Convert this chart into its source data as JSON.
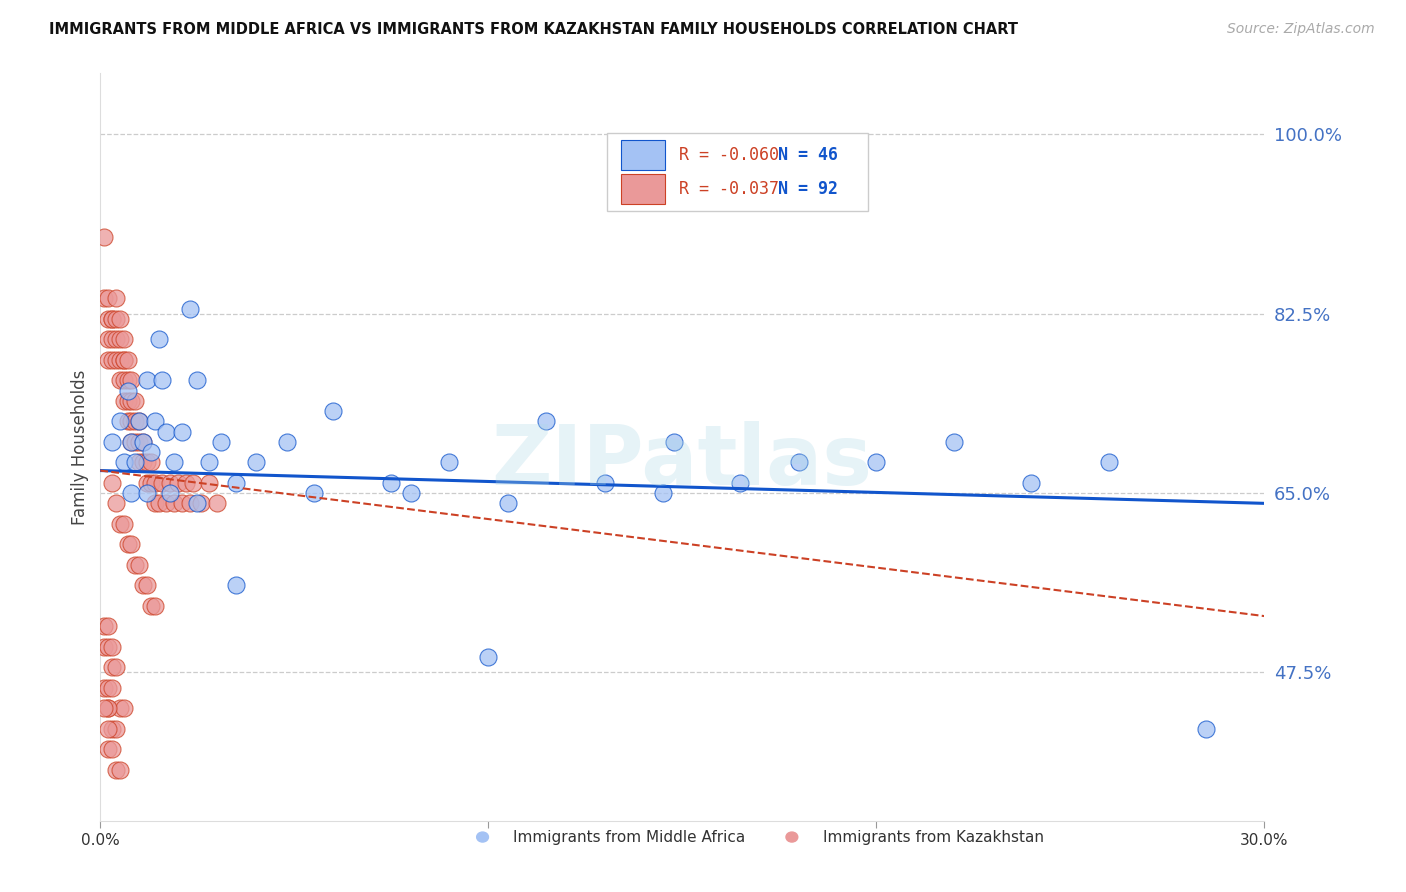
{
  "title": "IMMIGRANTS FROM MIDDLE AFRICA VS IMMIGRANTS FROM KAZAKHSTAN FAMILY HOUSEHOLDS CORRELATION CHART",
  "source": "Source: ZipAtlas.com",
  "ylabel": "Family Households",
  "yticks": [
    0.475,
    0.65,
    0.825,
    1.0
  ],
  "ytick_labels": [
    "47.5%",
    "65.0%",
    "82.5%",
    "100.0%"
  ],
  "xmin": 0.0,
  "xmax": 0.3,
  "ymin": 0.33,
  "ymax": 1.06,
  "watermark": "ZIPatlas",
  "legend_r1": "R = -0.060",
  "legend_n1": "N = 46",
  "legend_r2": "R = -0.037",
  "legend_n2": "N = 92",
  "legend_label1": "Immigrants from Middle Africa",
  "legend_label2": "Immigrants from Kazakhstan",
  "blue_color": "#a4c2f4",
  "pink_color": "#ea9999",
  "line_blue": "#1155cc",
  "line_pink": "#cc4125",
  "blue_scatter_x": [
    0.003,
    0.005,
    0.006,
    0.007,
    0.008,
    0.009,
    0.01,
    0.011,
    0.012,
    0.013,
    0.014,
    0.015,
    0.016,
    0.017,
    0.019,
    0.021,
    0.023,
    0.025,
    0.028,
    0.031,
    0.035,
    0.04,
    0.048,
    0.06,
    0.075,
    0.09,
    0.105,
    0.115,
    0.13,
    0.148,
    0.165,
    0.18,
    0.2,
    0.22,
    0.24,
    0.26,
    0.008,
    0.012,
    0.018,
    0.025,
    0.035,
    0.055,
    0.08,
    0.1,
    0.145,
    0.285
  ],
  "blue_scatter_y": [
    0.7,
    0.72,
    0.68,
    0.75,
    0.7,
    0.68,
    0.72,
    0.7,
    0.76,
    0.69,
    0.72,
    0.8,
    0.76,
    0.71,
    0.68,
    0.71,
    0.83,
    0.76,
    0.68,
    0.7,
    0.66,
    0.68,
    0.7,
    0.73,
    0.66,
    0.68,
    0.64,
    0.72,
    0.66,
    0.7,
    0.66,
    0.68,
    0.68,
    0.7,
    0.66,
    0.68,
    0.65,
    0.65,
    0.65,
    0.64,
    0.56,
    0.65,
    0.65,
    0.49,
    0.65,
    0.42
  ],
  "pink_scatter_x": [
    0.001,
    0.001,
    0.002,
    0.002,
    0.002,
    0.002,
    0.003,
    0.003,
    0.003,
    0.003,
    0.004,
    0.004,
    0.004,
    0.004,
    0.005,
    0.005,
    0.005,
    0.005,
    0.006,
    0.006,
    0.006,
    0.006,
    0.006,
    0.007,
    0.007,
    0.007,
    0.007,
    0.008,
    0.008,
    0.008,
    0.008,
    0.009,
    0.009,
    0.009,
    0.01,
    0.01,
    0.01,
    0.011,
    0.011,
    0.012,
    0.012,
    0.013,
    0.013,
    0.014,
    0.014,
    0.015,
    0.016,
    0.017,
    0.018,
    0.019,
    0.02,
    0.021,
    0.022,
    0.023,
    0.024,
    0.026,
    0.028,
    0.03,
    0.003,
    0.004,
    0.005,
    0.006,
    0.007,
    0.008,
    0.009,
    0.01,
    0.011,
    0.012,
    0.013,
    0.014,
    0.001,
    0.002,
    0.003,
    0.004,
    0.005,
    0.006,
    0.002,
    0.003,
    0.004,
    0.005,
    0.001,
    0.002,
    0.003,
    0.004,
    0.001,
    0.002,
    0.003,
    0.002,
    0.003,
    0.002,
    0.001,
    0.002
  ],
  "pink_scatter_y": [
    0.9,
    0.84,
    0.82,
    0.8,
    0.84,
    0.78,
    0.82,
    0.8,
    0.78,
    0.82,
    0.8,
    0.82,
    0.78,
    0.84,
    0.76,
    0.78,
    0.8,
    0.82,
    0.78,
    0.76,
    0.74,
    0.78,
    0.8,
    0.72,
    0.74,
    0.76,
    0.78,
    0.7,
    0.72,
    0.74,
    0.76,
    0.7,
    0.72,
    0.74,
    0.68,
    0.7,
    0.72,
    0.68,
    0.7,
    0.66,
    0.68,
    0.66,
    0.68,
    0.64,
    0.66,
    0.64,
    0.66,
    0.64,
    0.66,
    0.64,
    0.66,
    0.64,
    0.66,
    0.64,
    0.66,
    0.64,
    0.66,
    0.64,
    0.66,
    0.64,
    0.62,
    0.62,
    0.6,
    0.6,
    0.58,
    0.58,
    0.56,
    0.56,
    0.54,
    0.54,
    0.46,
    0.44,
    0.42,
    0.42,
    0.44,
    0.44,
    0.4,
    0.4,
    0.38,
    0.38,
    0.5,
    0.5,
    0.48,
    0.48,
    0.52,
    0.52,
    0.5,
    0.46,
    0.46,
    0.44,
    0.44,
    0.42
  ]
}
